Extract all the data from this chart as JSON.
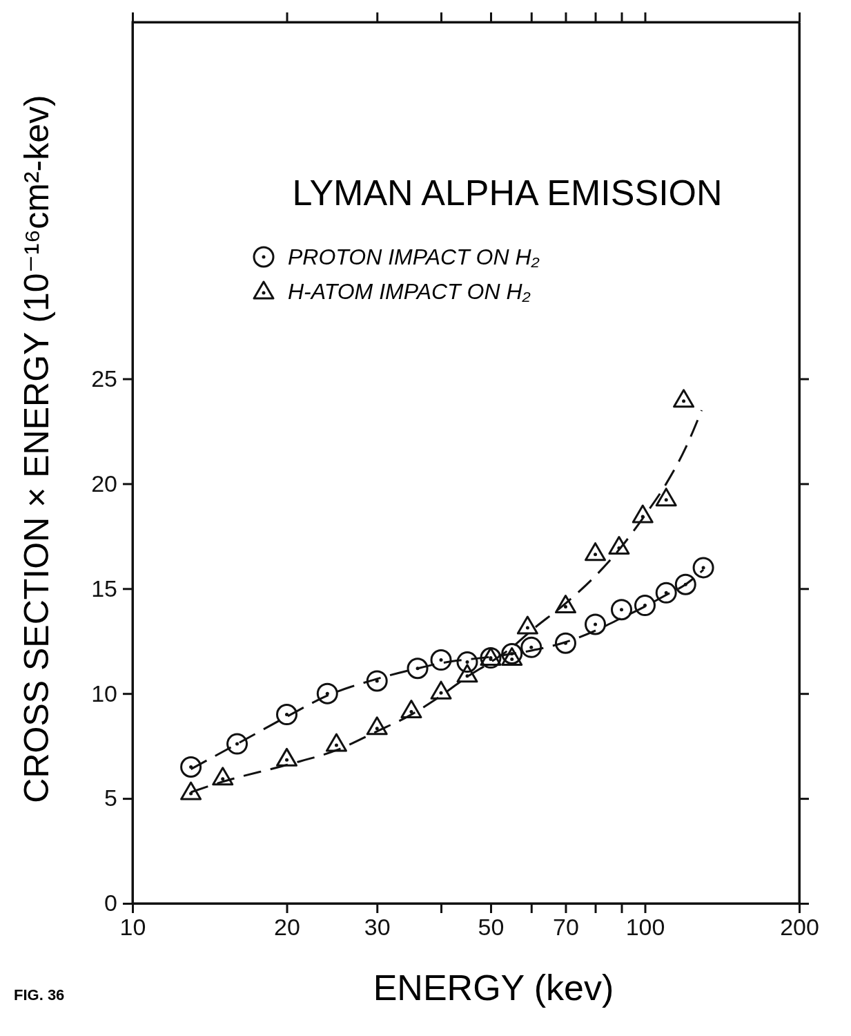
{
  "chart_data": {
    "type": "scatter",
    "title": "LYMAN ALPHA EMISSION",
    "xlabel": "ENERGY (kev)",
    "ylabel": "CROSS SECTION × ENERGY (10⁻¹⁶cm²-kev)",
    "annotations": [
      "FIG. 36"
    ],
    "log": "x",
    "xlim": [
      10,
      200
    ],
    "ylim": [
      0,
      42
    ],
    "xticks": [
      10,
      20,
      30,
      {
        "value": 40,
        "label": null
      },
      50,
      {
        "value": 60,
        "label": null
      },
      70,
      {
        "value": 80,
        "label": null
      },
      {
        "value": 90,
        "label": null
      },
      100,
      200
    ],
    "yticks": [
      0,
      5,
      10,
      15,
      20,
      25
    ],
    "legend": "top left",
    "series": [
      {
        "name": "PROTON IMPACT ON H₂",
        "color": "#111111",
        "marker": "circle",
        "x": [
          13,
          16,
          20,
          24,
          30,
          36,
          40,
          45,
          50,
          55,
          60,
          70,
          80,
          90,
          100,
          110,
          120,
          130
        ],
        "values": [
          6.5,
          7.6,
          9.0,
          10.0,
          10.6,
          11.2,
          11.6,
          11.5,
          11.7,
          11.9,
          12.2,
          12.4,
          13.3,
          14.0,
          14.2,
          14.8,
          15.2,
          16.0
        ]
      },
      {
        "name": "H-ATOM IMPACT ON H₂",
        "color": "#111111",
        "marker": "triangle",
        "x": [
          13,
          15,
          20,
          25,
          30,
          35,
          40,
          45,
          50,
          55,
          59,
          70,
          80,
          89,
          99,
          110,
          119
        ],
        "values": [
          5.3,
          6.0,
          6.9,
          7.6,
          8.4,
          9.2,
          10.1,
          10.9,
          11.7,
          11.7,
          13.2,
          14.2,
          16.7,
          17.0,
          18.5,
          19.3,
          24.0
        ]
      },
      {
        "type": "line",
        "color": "#111111",
        "line_style": "dashed",
        "marker": "none",
        "x": [
          13,
          16,
          20,
          24,
          30,
          36,
          40,
          50,
          60,
          70,
          80,
          90,
          100,
          110,
          120,
          130
        ],
        "values": [
          6.4,
          7.6,
          8.9,
          9.9,
          10.7,
          11.2,
          11.45,
          11.75,
          12.05,
          12.45,
          13.0,
          13.6,
          14.15,
          14.7,
          15.2,
          15.9
        ]
      },
      {
        "type": "line",
        "color": "#111111",
        "line_style": "dashed",
        "marker": "none",
        "x": [
          13,
          15,
          20,
          25,
          30,
          35,
          40,
          45,
          50,
          55,
          60,
          70,
          80,
          90,
          100,
          110,
          120,
          129
        ],
        "values": [
          5.3,
          5.8,
          6.6,
          7.3,
          8.2,
          9.0,
          9.9,
          10.8,
          11.5,
          12.2,
          13.0,
          14.3,
          15.6,
          17.0,
          18.5,
          20.0,
          21.7,
          23.5
        ]
      }
    ]
  }
}
